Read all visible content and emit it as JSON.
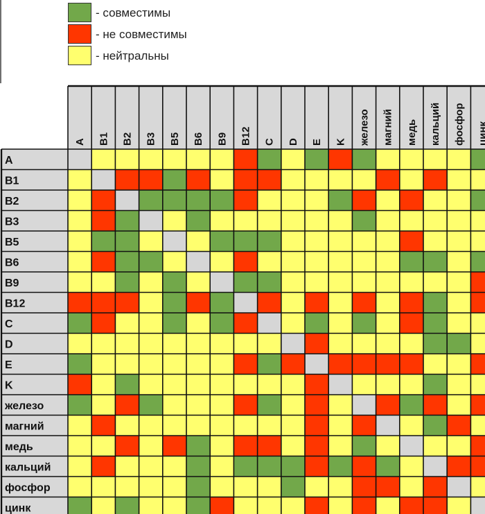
{
  "legend": {
    "items": [
      {
        "key": "g",
        "label": "- совместимы",
        "color": "#72a84a"
      },
      {
        "key": "r",
        "label": "- не совместимы",
        "color": "#ff3600"
      },
      {
        "key": "y",
        "label": "- нейтральны",
        "color": "#ffff6e"
      }
    ]
  },
  "chart_data": {
    "type": "heatmap",
    "title": "",
    "legend_placement": "top-left",
    "value_colors": {
      "g": "#72a84a",
      "r": "#ff3600",
      "y": "#ffff6e",
      "x": "#d6d6d6"
    },
    "columns": [
      "A",
      "B1",
      "B2",
      "B3",
      "B5",
      "B6",
      "B9",
      "B12",
      "C",
      "D",
      "E",
      "K",
      "железо",
      "магний",
      "медь",
      "кальций",
      "фосфор",
      "цинк"
    ],
    "rows": [
      "A",
      "B1",
      "B2",
      "B3",
      "B5",
      "B6",
      "B9",
      "B12",
      "C",
      "D",
      "E",
      "K",
      "железо",
      "магний",
      "медь",
      "кальций",
      "фосфор",
      "цинк"
    ],
    "cells": [
      [
        "x",
        "y",
        "y",
        "y",
        "y",
        "y",
        "y",
        "r",
        "g",
        "y",
        "g",
        "r",
        "g",
        "y",
        "y",
        "y",
        "y",
        "g"
      ],
      [
        "y",
        "x",
        "r",
        "r",
        "g",
        "r",
        "y",
        "r",
        "r",
        "y",
        "y",
        "y",
        "y",
        "r",
        "y",
        "r",
        "y",
        "y"
      ],
      [
        "y",
        "r",
        "x",
        "g",
        "g",
        "g",
        "g",
        "r",
        "y",
        "y",
        "y",
        "g",
        "r",
        "y",
        "r",
        "y",
        "y",
        "g"
      ],
      [
        "y",
        "r",
        "g",
        "x",
        "y",
        "g",
        "y",
        "y",
        "y",
        "y",
        "y",
        "y",
        "g",
        "y",
        "y",
        "y",
        "y",
        "y"
      ],
      [
        "y",
        "g",
        "g",
        "y",
        "x",
        "y",
        "g",
        "g",
        "g",
        "y",
        "y",
        "y",
        "y",
        "y",
        "r",
        "y",
        "y",
        "y"
      ],
      [
        "y",
        "r",
        "g",
        "g",
        "y",
        "x",
        "y",
        "r",
        "y",
        "y",
        "y",
        "y",
        "y",
        "y",
        "g",
        "g",
        "y",
        "g"
      ],
      [
        "y",
        "y",
        "g",
        "y",
        "g",
        "y",
        "x",
        "g",
        "g",
        "y",
        "y",
        "y",
        "y",
        "y",
        "y",
        "y",
        "y",
        "r"
      ],
      [
        "r",
        "r",
        "r",
        "y",
        "g",
        "r",
        "g",
        "x",
        "r",
        "y",
        "r",
        "y",
        "r",
        "y",
        "r",
        "g",
        "y",
        "r"
      ],
      [
        "g",
        "r",
        "y",
        "y",
        "g",
        "y",
        "g",
        "r",
        "x",
        "y",
        "g",
        "y",
        "g",
        "y",
        "r",
        "g",
        "y",
        "y"
      ],
      [
        "y",
        "y",
        "y",
        "y",
        "y",
        "y",
        "y",
        "y",
        "y",
        "x",
        "r",
        "y",
        "y",
        "y",
        "y",
        "g",
        "g",
        "y"
      ],
      [
        "g",
        "y",
        "y",
        "y",
        "y",
        "y",
        "y",
        "r",
        "g",
        "r",
        "x",
        "r",
        "r",
        "r",
        "r",
        "y",
        "y",
        "r"
      ],
      [
        "r",
        "y",
        "g",
        "y",
        "y",
        "y",
        "y",
        "y",
        "y",
        "y",
        "r",
        "x",
        "y",
        "y",
        "y",
        "g",
        "y",
        "y"
      ],
      [
        "g",
        "y",
        "r",
        "g",
        "y",
        "y",
        "y",
        "r",
        "g",
        "y",
        "r",
        "y",
        "x",
        "r",
        "g",
        "r",
        "y",
        "r"
      ],
      [
        "y",
        "r",
        "y",
        "y",
        "y",
        "y",
        "y",
        "y",
        "y",
        "y",
        "r",
        "y",
        "r",
        "x",
        "y",
        "g",
        "r",
        "y"
      ],
      [
        "y",
        "y",
        "r",
        "y",
        "r",
        "g",
        "y",
        "r",
        "r",
        "y",
        "r",
        "y",
        "g",
        "y",
        "x",
        "y",
        "y",
        "r"
      ],
      [
        "y",
        "r",
        "y",
        "y",
        "y",
        "g",
        "y",
        "g",
        "g",
        "g",
        "r",
        "g",
        "r",
        "g",
        "y",
        "x",
        "r",
        "r"
      ],
      [
        "y",
        "y",
        "y",
        "y",
        "y",
        "g",
        "y",
        "y",
        "y",
        "g",
        "y",
        "y",
        "r",
        "r",
        "y",
        "r",
        "x",
        "y"
      ],
      [
        "g",
        "y",
        "g",
        "y",
        "y",
        "g",
        "r",
        "y",
        "y",
        "y",
        "r",
        "y",
        "r",
        "y",
        "r",
        "r",
        "y",
        "x"
      ]
    ]
  }
}
